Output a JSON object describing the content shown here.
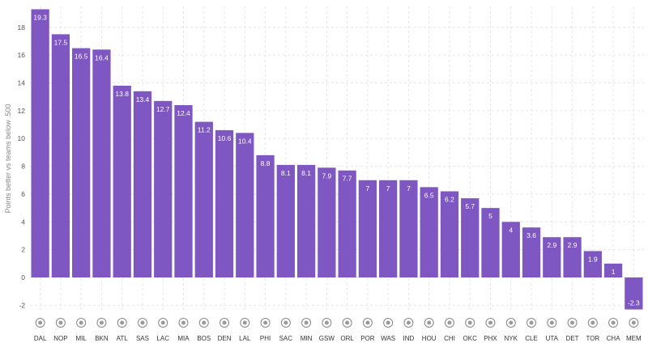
{
  "chart_data": {
    "type": "bar",
    "title": "",
    "xlabel": "",
    "ylabel": "Points better vs teams below .500",
    "ylim": [
      -2.5,
      19.5
    ],
    "yticks": [
      -2,
      0,
      2,
      4,
      6,
      8,
      10,
      12,
      14,
      16,
      18
    ],
    "grid": true,
    "categories": [
      "DAL",
      "NOP",
      "MIL",
      "BKN",
      "ATL",
      "SAS",
      "LAC",
      "MIA",
      "BOS",
      "DEN",
      "LAL",
      "PHI",
      "SAC",
      "MIN",
      "GSW",
      "ORL",
      "POR",
      "WAS",
      "IND",
      "HOU",
      "CHI",
      "OKC",
      "PHX",
      "NYK",
      "CLE",
      "UTA",
      "DET",
      "TOR",
      "CHA",
      "MEM"
    ],
    "values": [
      19.3,
      17.5,
      16.5,
      16.4,
      13.8,
      13.4,
      12.7,
      12.4,
      11.2,
      10.6,
      10.4,
      8.8,
      8.1,
      8.1,
      7.9,
      7.7,
      7,
      7,
      7,
      6.5,
      6.2,
      5.7,
      5,
      4,
      3.6,
      2.9,
      2.9,
      1.9,
      1,
      -2.3
    ],
    "value_labels": [
      "19.3",
      "17.5",
      "16.5",
      "16.4",
      "13.8",
      "13.4",
      "12.7",
      "12.4",
      "11.2",
      "10.6",
      "10.4",
      "8.8",
      "8.1",
      "8.1",
      "7.9",
      "7.7",
      "7",
      "7",
      "7",
      "6.5",
      "6.2",
      "5.7",
      "5",
      "4",
      "3.6",
      "2.9",
      "2.9",
      "1.9",
      "1",
      "-2.3"
    ],
    "bar_color": "#7e57c2"
  }
}
